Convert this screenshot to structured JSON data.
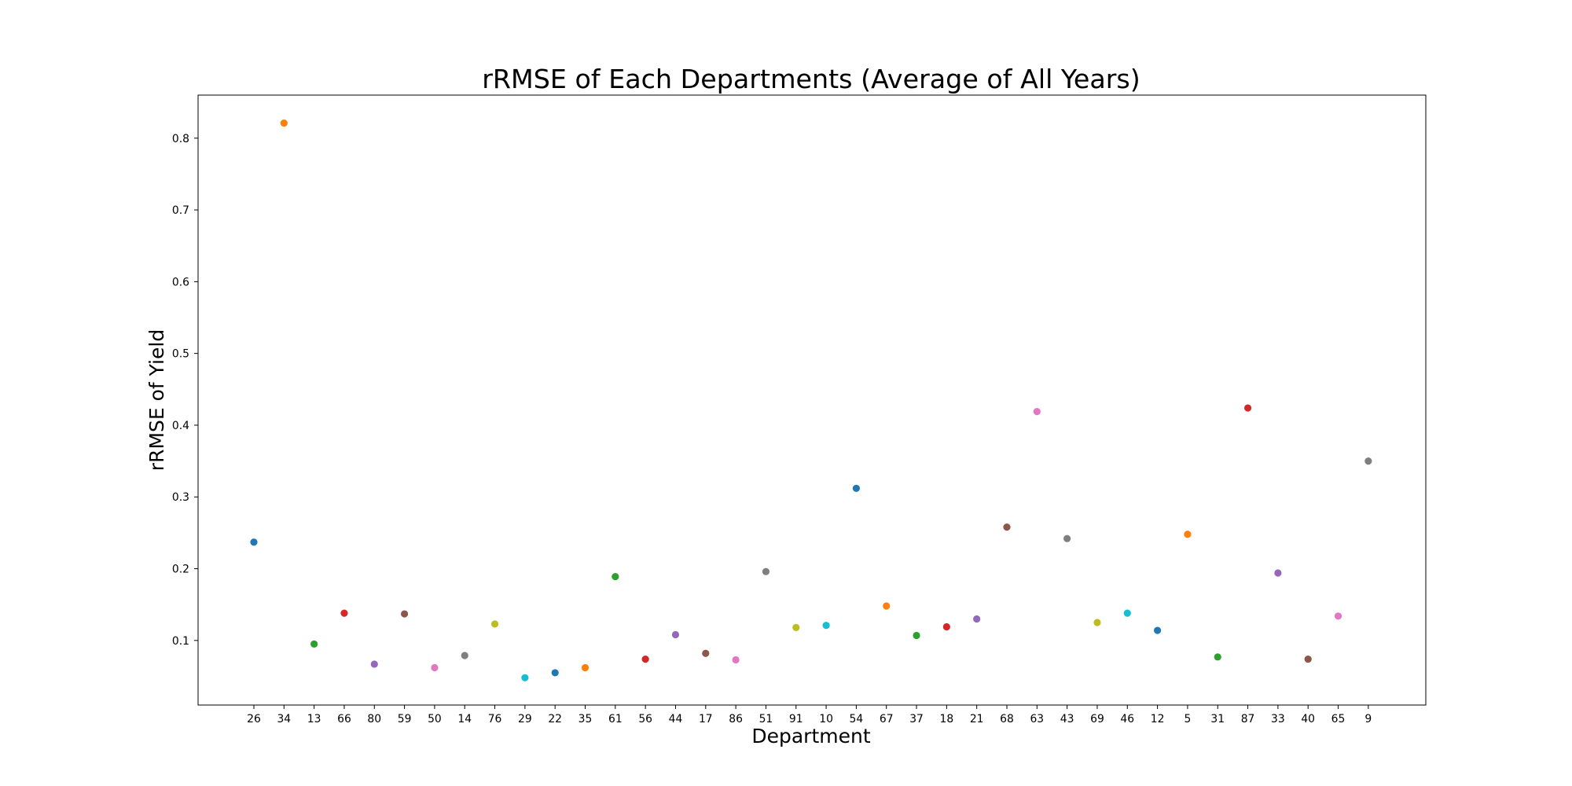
{
  "chart_data": {
    "type": "scatter",
    "title": "rRMSE of Each Departments (Average of All Years)",
    "xlabel": "Department",
    "ylabel": "rRMSE of Yield",
    "categories": [
      "26",
      "34",
      "13",
      "66",
      "80",
      "59",
      "50",
      "14",
      "76",
      "29",
      "22",
      "35",
      "61",
      "56",
      "44",
      "17",
      "86",
      "51",
      "91",
      "10",
      "54",
      "67",
      "37",
      "18",
      "21",
      "68",
      "63",
      "43",
      "69",
      "46",
      "12",
      "5",
      "31",
      "87",
      "33",
      "40",
      "65",
      "9"
    ],
    "values": [
      0.237,
      0.821,
      0.095,
      0.138,
      0.067,
      0.137,
      0.062,
      0.079,
      0.123,
      0.048,
      0.055,
      0.062,
      0.189,
      0.074,
      0.108,
      0.082,
      0.073,
      0.196,
      0.118,
      0.121,
      0.312,
      0.148,
      0.107,
      0.119,
      0.13,
      0.258,
      0.419,
      0.242,
      0.125,
      0.138,
      0.114,
      0.248,
      0.077,
      0.424,
      0.194,
      0.074,
      0.134,
      0.35
    ],
    "colors": [
      "#1f77b4",
      "#ff7f0e",
      "#2ca02c",
      "#d62728",
      "#9467bd",
      "#8c564b",
      "#e377c2",
      "#7f7f7f",
      "#bcbd22",
      "#17becf"
    ],
    "ylim": [
      0.01,
      0.86
    ],
    "yticks": [
      0.1,
      0.2,
      0.3,
      0.4,
      0.5,
      0.6,
      0.7,
      0.8
    ],
    "grid": false,
    "legend": "none"
  }
}
